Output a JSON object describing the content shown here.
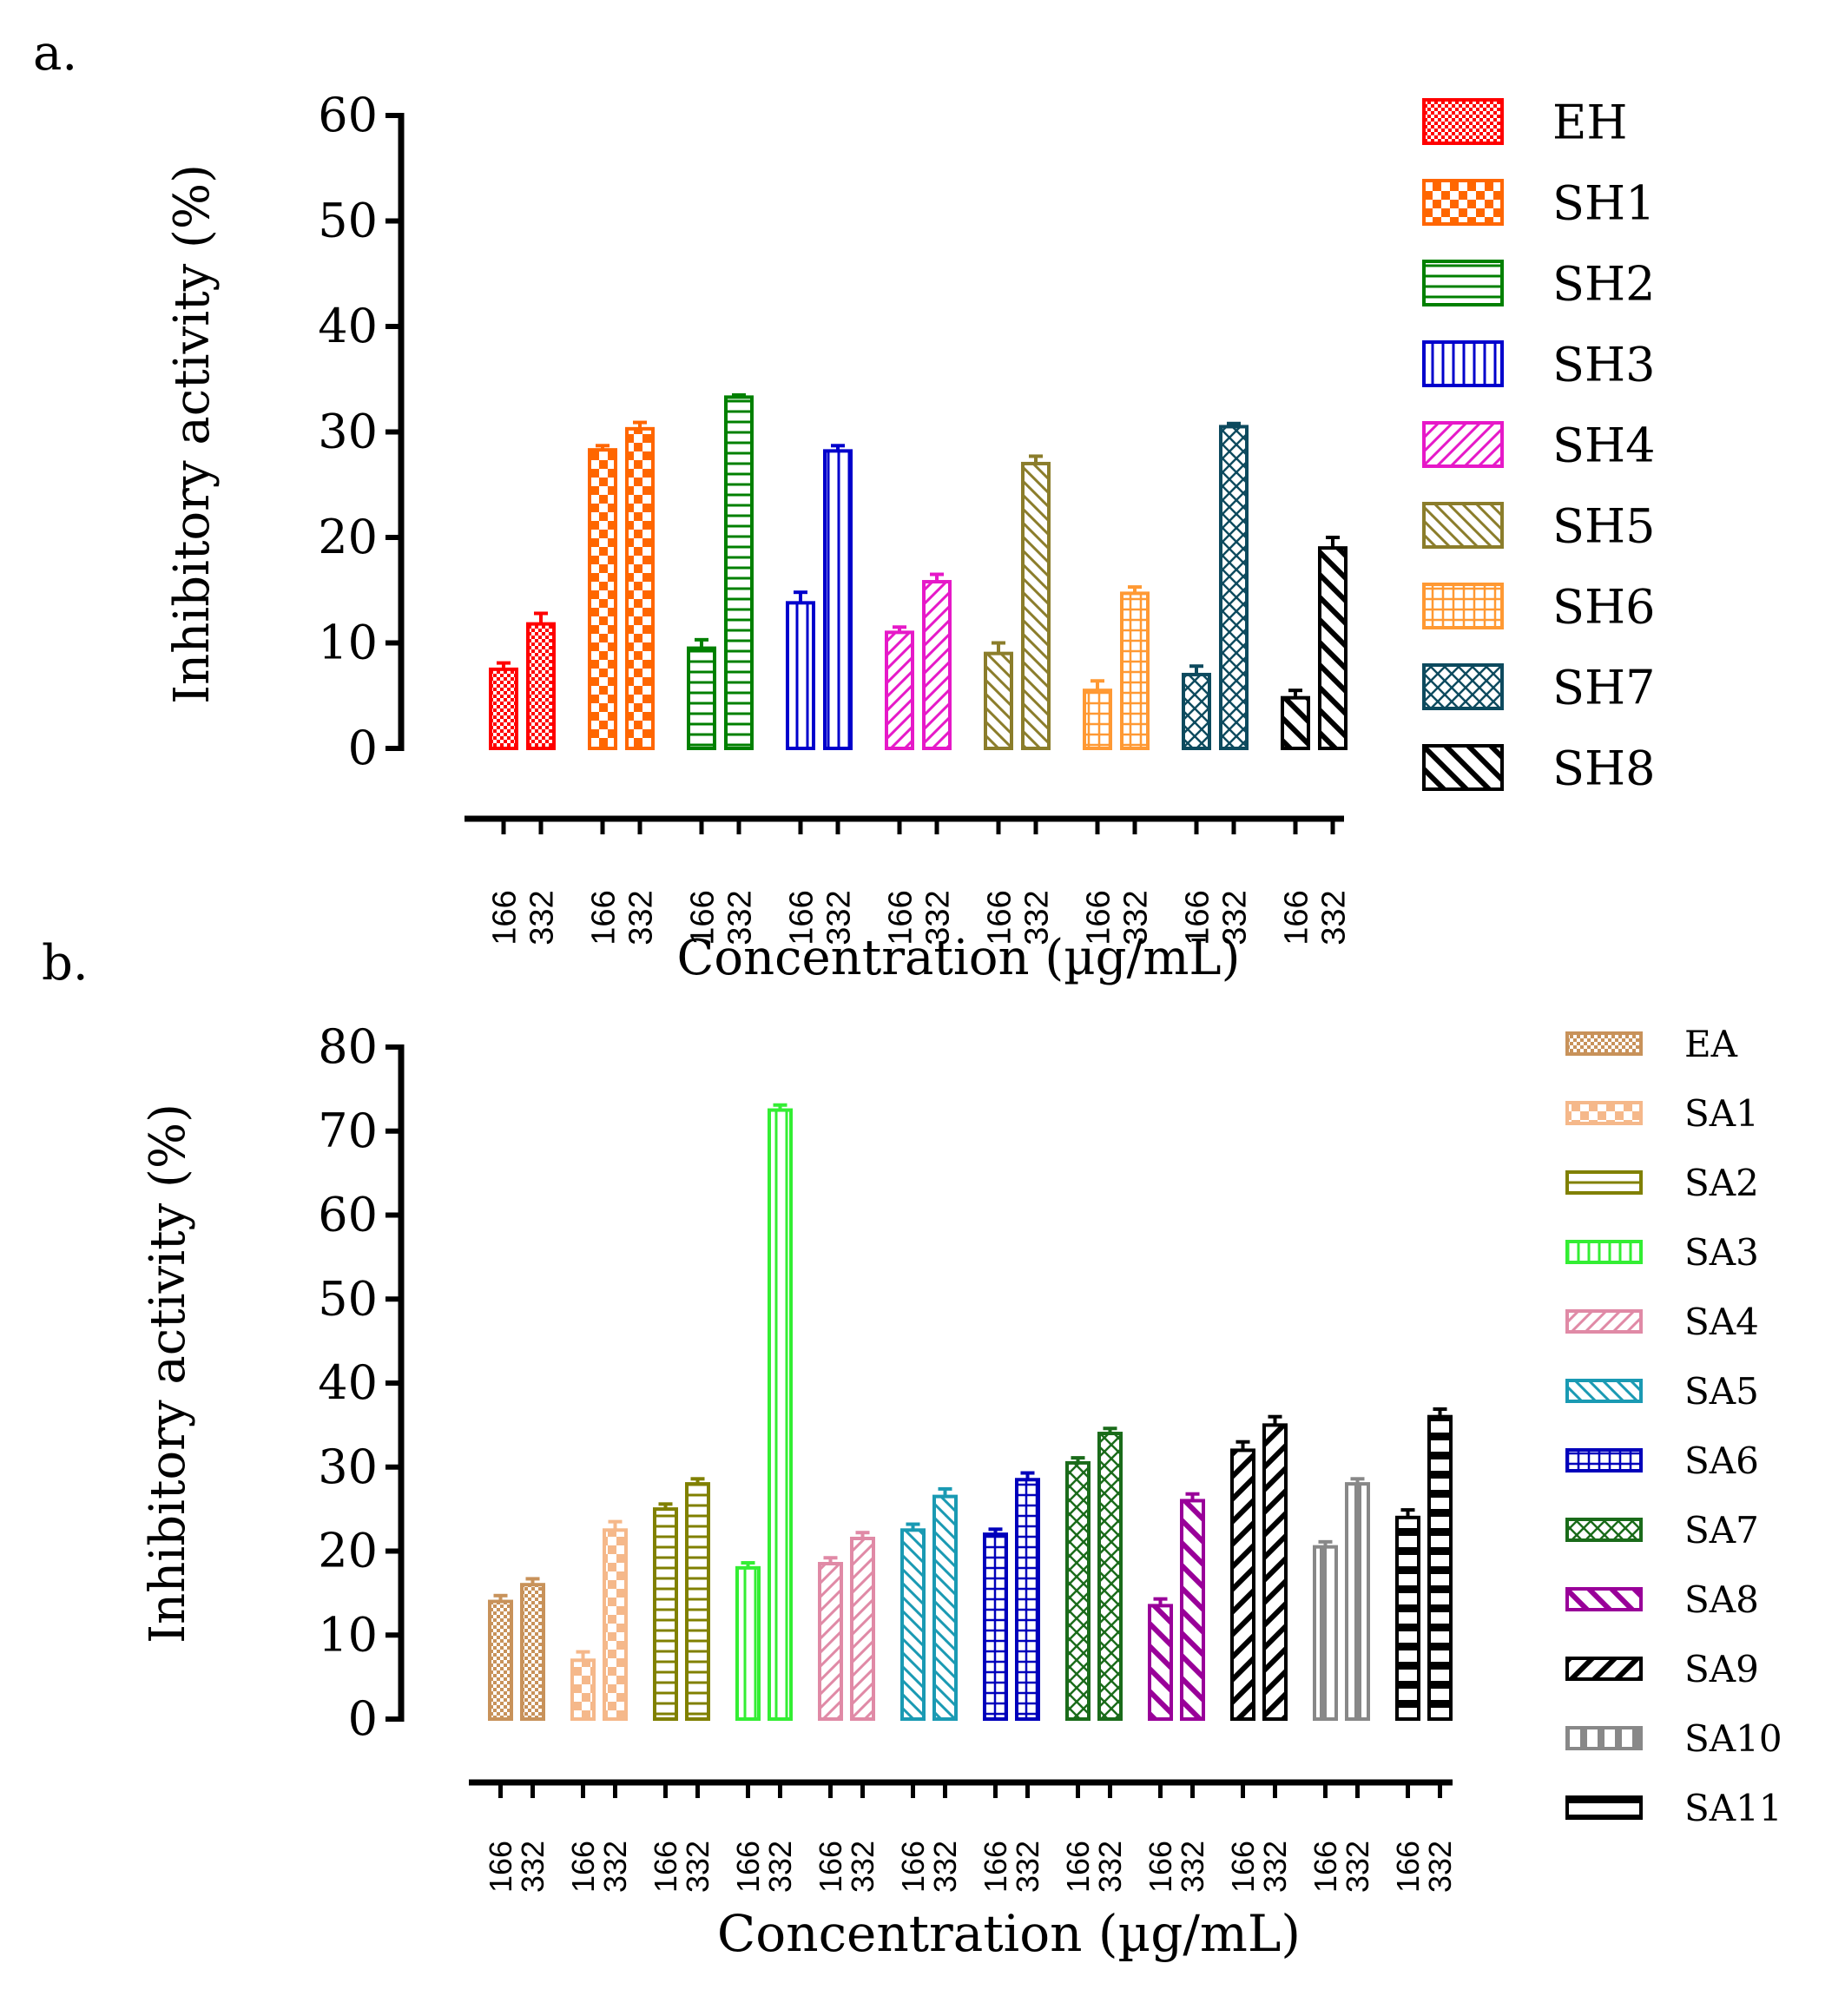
{
  "chart_data": [
    {
      "panel_label": "a.",
      "type": "bar",
      "ylabel": "Inhibitory activity (%)",
      "xlabel": "Concentration (µg/mL)",
      "ylim": [
        0,
        60
      ],
      "yticks": [
        "0",
        "10",
        "20",
        "30",
        "40",
        "50",
        "60"
      ],
      "legend_position": "right",
      "series": [
        {
          "name": "EH",
          "color": "#ff0000",
          "pattern": "checker-fine",
          "categories": [
            "166",
            "332"
          ],
          "values": [
            7.5,
            11.8
          ],
          "errors": [
            0.6,
            1.0
          ]
        },
        {
          "name": "SH1",
          "color": "#ff6600",
          "pattern": "checker",
          "categories": [
            "166",
            "332"
          ],
          "values": [
            28.3,
            30.3
          ],
          "errors": [
            0.4,
            0.6
          ]
        },
        {
          "name": "SH2",
          "color": "#008000",
          "pattern": "hlines",
          "categories": [
            "166",
            "332"
          ],
          "values": [
            9.5,
            33.3
          ],
          "errors": [
            0.8,
            0.2
          ]
        },
        {
          "name": "SH3",
          "color": "#0000cc",
          "pattern": "vlines",
          "categories": [
            "166",
            "332"
          ],
          "values": [
            13.8,
            28.2
          ],
          "errors": [
            1.0,
            0.5
          ]
        },
        {
          "name": "SH4",
          "color": "#e619c8",
          "pattern": "diag-up",
          "categories": [
            "166",
            "332"
          ],
          "values": [
            11.0,
            15.8
          ],
          "errors": [
            0.5,
            0.7
          ]
        },
        {
          "name": "SH5",
          "color": "#8b7d2b",
          "pattern": "diag-down",
          "categories": [
            "166",
            "332"
          ],
          "values": [
            9.0,
            27.0
          ],
          "errors": [
            1.0,
            0.7
          ]
        },
        {
          "name": "SH6",
          "color": "#ff9933",
          "pattern": "grid",
          "categories": [
            "166",
            "332"
          ],
          "values": [
            5.5,
            14.7
          ],
          "errors": [
            0.9,
            0.6
          ]
        },
        {
          "name": "SH7",
          "color": "#0d4a5e",
          "pattern": "crosshatch",
          "categories": [
            "166",
            "332"
          ],
          "values": [
            7.0,
            30.5
          ],
          "errors": [
            0.8,
            0.3
          ]
        },
        {
          "name": "SH8",
          "color": "#000000",
          "pattern": "diag-down-wide",
          "categories": [
            "166",
            "332"
          ],
          "values": [
            4.8,
            19.0
          ],
          "errors": [
            0.7,
            1.0
          ]
        }
      ]
    },
    {
      "panel_label": "b.",
      "type": "bar",
      "ylabel": "Inhibitory activity (%)",
      "xlabel": "Concentration (µg/mL)",
      "ylim": [
        0,
        80
      ],
      "yticks": [
        "0",
        "10",
        "20",
        "30",
        "40",
        "50",
        "60",
        "70",
        "80"
      ],
      "legend_position": "right",
      "series": [
        {
          "name": "EA",
          "color": "#c8925a",
          "pattern": "checker-fine",
          "categories": [
            "166",
            "332"
          ],
          "values": [
            14.0,
            16.0
          ],
          "errors": [
            0.7,
            0.7
          ]
        },
        {
          "name": "SA1",
          "color": "#f5b88a",
          "pattern": "checker",
          "categories": [
            "166",
            "332"
          ],
          "values": [
            7.0,
            22.5
          ],
          "errors": [
            1.0,
            1.0
          ]
        },
        {
          "name": "SA2",
          "color": "#808000",
          "pattern": "hlines",
          "categories": [
            "166",
            "332"
          ],
          "values": [
            25.0,
            28.0
          ],
          "errors": [
            0.6,
            0.6
          ]
        },
        {
          "name": "SA3",
          "color": "#33ee33",
          "pattern": "vlines",
          "categories": [
            "166",
            "332"
          ],
          "values": [
            18.0,
            72.5
          ],
          "errors": [
            0.6,
            0.6
          ]
        },
        {
          "name": "SA4",
          "color": "#e08aa6",
          "pattern": "diag-up",
          "categories": [
            "166",
            "332"
          ],
          "values": [
            18.5,
            21.5
          ],
          "errors": [
            0.7,
            0.7
          ]
        },
        {
          "name": "SA5",
          "color": "#1a9ab3",
          "pattern": "diag-down",
          "categories": [
            "166",
            "332"
          ],
          "values": [
            22.5,
            26.5
          ],
          "errors": [
            0.7,
            0.9
          ]
        },
        {
          "name": "SA6",
          "color": "#0000bb",
          "pattern": "grid",
          "categories": [
            "166",
            "332"
          ],
          "values": [
            22.0,
            28.5
          ],
          "errors": [
            0.6,
            0.8
          ]
        },
        {
          "name": "SA7",
          "color": "#1a6b1a",
          "pattern": "crosshatch",
          "categories": [
            "166",
            "332"
          ],
          "values": [
            30.5,
            34.0
          ],
          "errors": [
            0.6,
            0.6
          ]
        },
        {
          "name": "SA8",
          "color": "#990099",
          "pattern": "diag-down-wide",
          "categories": [
            "166",
            "332"
          ],
          "values": [
            13.5,
            26.0
          ],
          "errors": [
            0.8,
            0.8
          ]
        },
        {
          "name": "SA9",
          "color": "#000000",
          "pattern": "diag-up-wide",
          "categories": [
            "166",
            "332"
          ],
          "values": [
            32.0,
            35.0
          ],
          "errors": [
            1.0,
            1.0
          ]
        },
        {
          "name": "SA10",
          "color": "#888888",
          "pattern": "vstripes-wide",
          "categories": [
            "166",
            "332"
          ],
          "values": [
            20.5,
            28.0
          ],
          "errors": [
            0.6,
            0.6
          ]
        },
        {
          "name": "SA11",
          "color": "#000000",
          "pattern": "hstripes-wide",
          "categories": [
            "166",
            "332"
          ],
          "values": [
            24.0,
            36.0
          ],
          "errors": [
            0.9,
            0.9
          ]
        }
      ]
    }
  ]
}
